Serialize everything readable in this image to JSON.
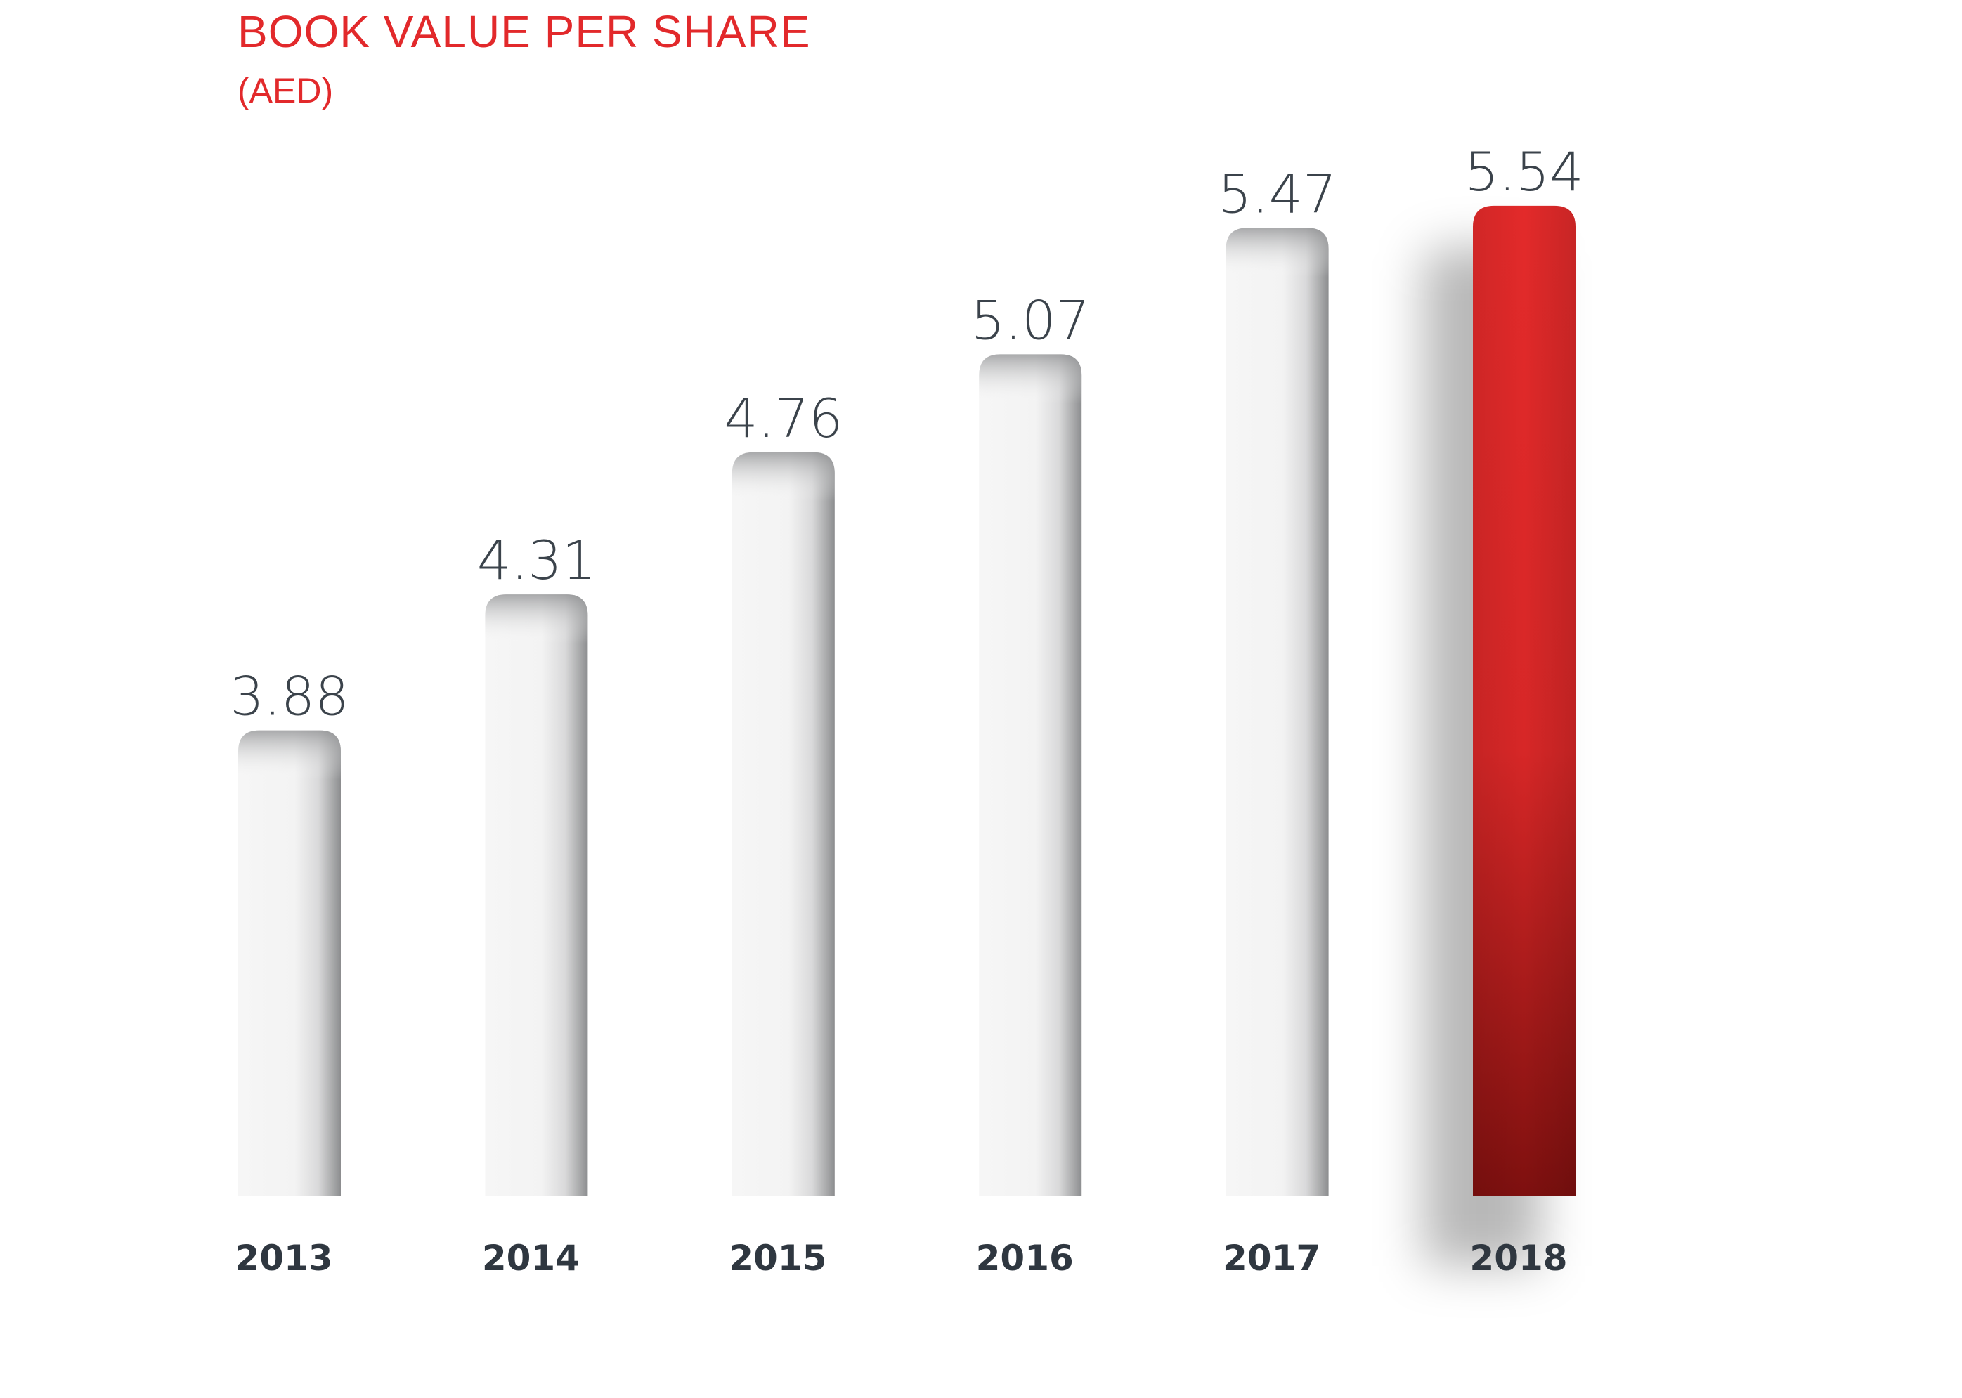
{
  "chart_data": {
    "type": "bar",
    "title": "BOOK VALUE PER SHARE",
    "subtitle": "(AED)",
    "categories": [
      "2013",
      "2014",
      "2015",
      "2016",
      "2017",
      "2018"
    ],
    "values": [
      3.88,
      4.31,
      4.76,
      5.07,
      5.47,
      5.54
    ],
    "value_labels": [
      "3.88",
      "4.31",
      "4.76",
      "5.07",
      "5.47",
      "5.54"
    ],
    "highlight_index": 5,
    "xlabel": "",
    "ylabel": "",
    "grid": false,
    "legend": "none",
    "colors": {
      "title": "#e2292b",
      "bar": "#f4f4f4",
      "bar_shade": "#8e8f91",
      "highlight_top": "#e32a2a",
      "highlight_bottom": "#7e100f",
      "value_text": "#3b434b",
      "category_text": "#2f3740"
    }
  }
}
